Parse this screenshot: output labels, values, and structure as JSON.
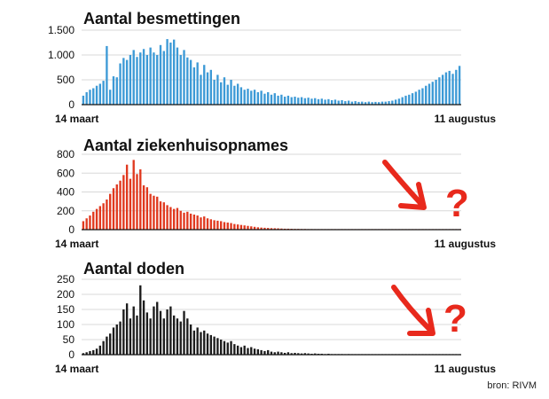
{
  "source": "bron: RIVM",
  "annotation_mark": "?",
  "colors": {
    "infections": "#3d9ad6",
    "hospital": "#e0391f",
    "deaths": "#1c1c1c",
    "annotation": "#e8291c",
    "grid": "#d8d8d8"
  },
  "chart_data": [
    {
      "type": "bar",
      "title": "Aantal besmettingen",
      "x_start_label": "14 maart",
      "x_end_label": "11 augustus",
      "ylim": [
        0,
        1500
      ],
      "y_ticks": [
        0,
        500,
        1000,
        1500
      ],
      "y_tick_labels": [
        "0",
        "500",
        "1.000",
        "1.500"
      ],
      "grid": true,
      "values": [
        180,
        250,
        300,
        330,
        380,
        420,
        480,
        1180,
        300,
        570,
        550,
        830,
        940,
        900,
        1000,
        1100,
        960,
        1050,
        1120,
        1000,
        1150,
        1050,
        1000,
        1200,
        1080,
        1320,
        1250,
        1310,
        1150,
        1000,
        1100,
        950,
        900,
        750,
        850,
        600,
        800,
        650,
        700,
        500,
        600,
        450,
        550,
        400,
        500,
        380,
        420,
        350,
        300,
        320,
        280,
        300,
        250,
        280,
        220,
        250,
        200,
        230,
        180,
        200,
        160,
        180,
        150,
        160,
        140,
        150,
        130,
        140,
        120,
        130,
        110,
        120,
        100,
        110,
        90,
        100,
        80,
        90,
        70,
        80,
        60,
        70,
        55,
        60,
        50,
        60,
        50,
        55,
        50,
        60,
        60,
        70,
        80,
        100,
        120,
        150,
        180,
        200,
        230,
        260,
        300,
        330,
        380,
        420,
        460,
        500,
        550,
        600,
        650,
        680,
        620,
        700,
        780
      ]
    },
    {
      "type": "bar",
      "title": "Aantal ziekenhuisopnames",
      "x_start_label": "14 maart",
      "x_end_label": "11 augustus",
      "ylim": [
        0,
        800
      ],
      "y_ticks": [
        0,
        200,
        400,
        600,
        800
      ],
      "y_tick_labels": [
        "0",
        "200",
        "400",
        "600",
        "800"
      ],
      "grid": true,
      "values": [
        90,
        120,
        150,
        190,
        220,
        250,
        280,
        320,
        380,
        440,
        480,
        520,
        580,
        690,
        540,
        740,
        590,
        640,
        470,
        450,
        380,
        360,
        350,
        300,
        290,
        260,
        240,
        220,
        230,
        200,
        180,
        190,
        170,
        160,
        150,
        130,
        140,
        120,
        110,
        100,
        95,
        90,
        80,
        75,
        70,
        60,
        55,
        50,
        45,
        40,
        35,
        30,
        25,
        22,
        20,
        18,
        16,
        15,
        14,
        12,
        10,
        10,
        9,
        8,
        8,
        7,
        7,
        6,
        6,
        5,
        5,
        5,
        4,
        4,
        4,
        4,
        3,
        3,
        3,
        3,
        3,
        3,
        3,
        3,
        3,
        3,
        2,
        2,
        2,
        2,
        2,
        2,
        2,
        2,
        2,
        2,
        2,
        2,
        2,
        2,
        2,
        2,
        2,
        2,
        2,
        2,
        2,
        2,
        2,
        2,
        2,
        2,
        2
      ]
    },
    {
      "type": "bar",
      "title": "Aantal doden",
      "x_start_label": "14 maart",
      "x_end_label": "11 augustus",
      "ylim": [
        0,
        250
      ],
      "y_ticks": [
        0,
        50,
        100,
        150,
        200,
        250
      ],
      "y_tick_labels": [
        "0",
        "50",
        "100",
        "150",
        "200",
        "250"
      ],
      "grid": true,
      "values": [
        5,
        8,
        12,
        15,
        20,
        30,
        45,
        60,
        70,
        90,
        100,
        110,
        150,
        170,
        120,
        160,
        130,
        230,
        180,
        140,
        120,
        160,
        175,
        145,
        120,
        150,
        160,
        130,
        120,
        110,
        145,
        120,
        100,
        80,
        90,
        75,
        80,
        70,
        65,
        60,
        55,
        50,
        45,
        40,
        45,
        35,
        30,
        25,
        30,
        22,
        25,
        20,
        18,
        15,
        12,
        15,
        10,
        8,
        10,
        8,
        6,
        8,
        5,
        6,
        5,
        4,
        5,
        4,
        3,
        4,
        3,
        3,
        2,
        3,
        2,
        2,
        2,
        2,
        1,
        2,
        1,
        1,
        1,
        1,
        1,
        1,
        1,
        1,
        1,
        1,
        1,
        1,
        1,
        1,
        1,
        1,
        1,
        1,
        1,
        1,
        1,
        1,
        1,
        1,
        1,
        1,
        1,
        1,
        1,
        1,
        1,
        1,
        1
      ]
    }
  ]
}
